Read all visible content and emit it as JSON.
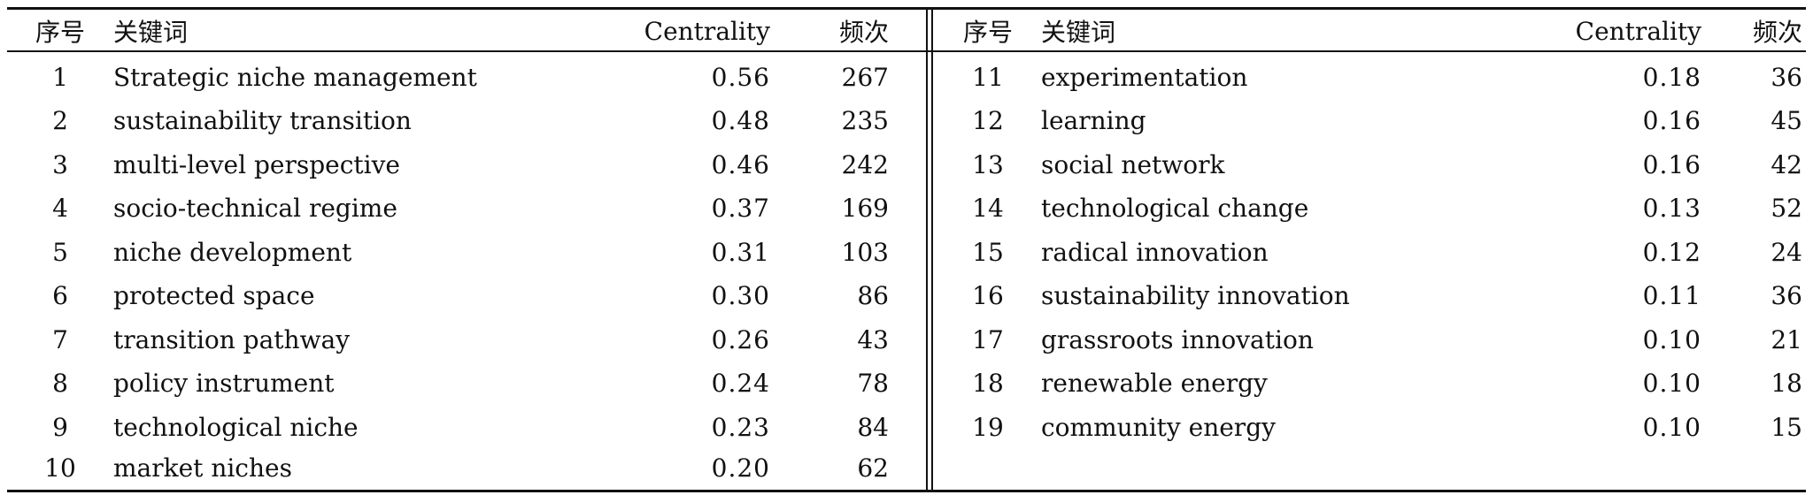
{
  "header": {
    "index": "序号",
    "keyword": "关键词",
    "centrality": "Centrality",
    "frequency": "频次"
  },
  "left_rows": [
    {
      "index": "1",
      "keyword": "Strategic niche management",
      "centrality": "0.56",
      "frequency": "267"
    },
    {
      "index": "2",
      "keyword": "sustainability transition",
      "centrality": "0.48",
      "frequency": "235"
    },
    {
      "index": "3",
      "keyword": "multi-level perspective",
      "centrality": "0.46",
      "frequency": "242"
    },
    {
      "index": "4",
      "keyword": "socio-technical regime",
      "centrality": "0.37",
      "frequency": "169"
    },
    {
      "index": "5",
      "keyword": "niche development",
      "centrality": "0.31",
      "frequency": "103"
    },
    {
      "index": "6",
      "keyword": "protected space",
      "centrality": "0.30",
      "frequency": "86"
    },
    {
      "index": "7",
      "keyword": "transition pathway",
      "centrality": "0.26",
      "frequency": "43"
    },
    {
      "index": "8",
      "keyword": "policy instrument",
      "centrality": "0.24",
      "frequency": "78"
    },
    {
      "index": "9",
      "keyword": "technological niche",
      "centrality": "0.23",
      "frequency": "84"
    },
    {
      "index": "10",
      "keyword": "market niches",
      "centrality": "0.20",
      "frequency": "62"
    }
  ],
  "right_rows": [
    {
      "index": "11",
      "keyword": "experimentation",
      "centrality": "0.18",
      "frequency": "36"
    },
    {
      "index": "12",
      "keyword": "learning",
      "centrality": "0.16",
      "frequency": "45"
    },
    {
      "index": "13",
      "keyword": "social network",
      "centrality": "0.16",
      "frequency": "42"
    },
    {
      "index": "14",
      "keyword": "technological change",
      "centrality": "0.13",
      "frequency": "52"
    },
    {
      "index": "15",
      "keyword": "radical innovation",
      "centrality": "0.12",
      "frequency": "24"
    },
    {
      "index": "16",
      "keyword": "sustainability innovation",
      "centrality": "0.11",
      "frequency": "36"
    },
    {
      "index": "17",
      "keyword": "grassroots innovation",
      "centrality": "0.10",
      "frequency": "21"
    },
    {
      "index": "18",
      "keyword": "renewable energy",
      "centrality": "0.10",
      "frequency": "18"
    },
    {
      "index": "19",
      "keyword": "community energy",
      "centrality": "0.10",
      "frequency": "15"
    }
  ]
}
